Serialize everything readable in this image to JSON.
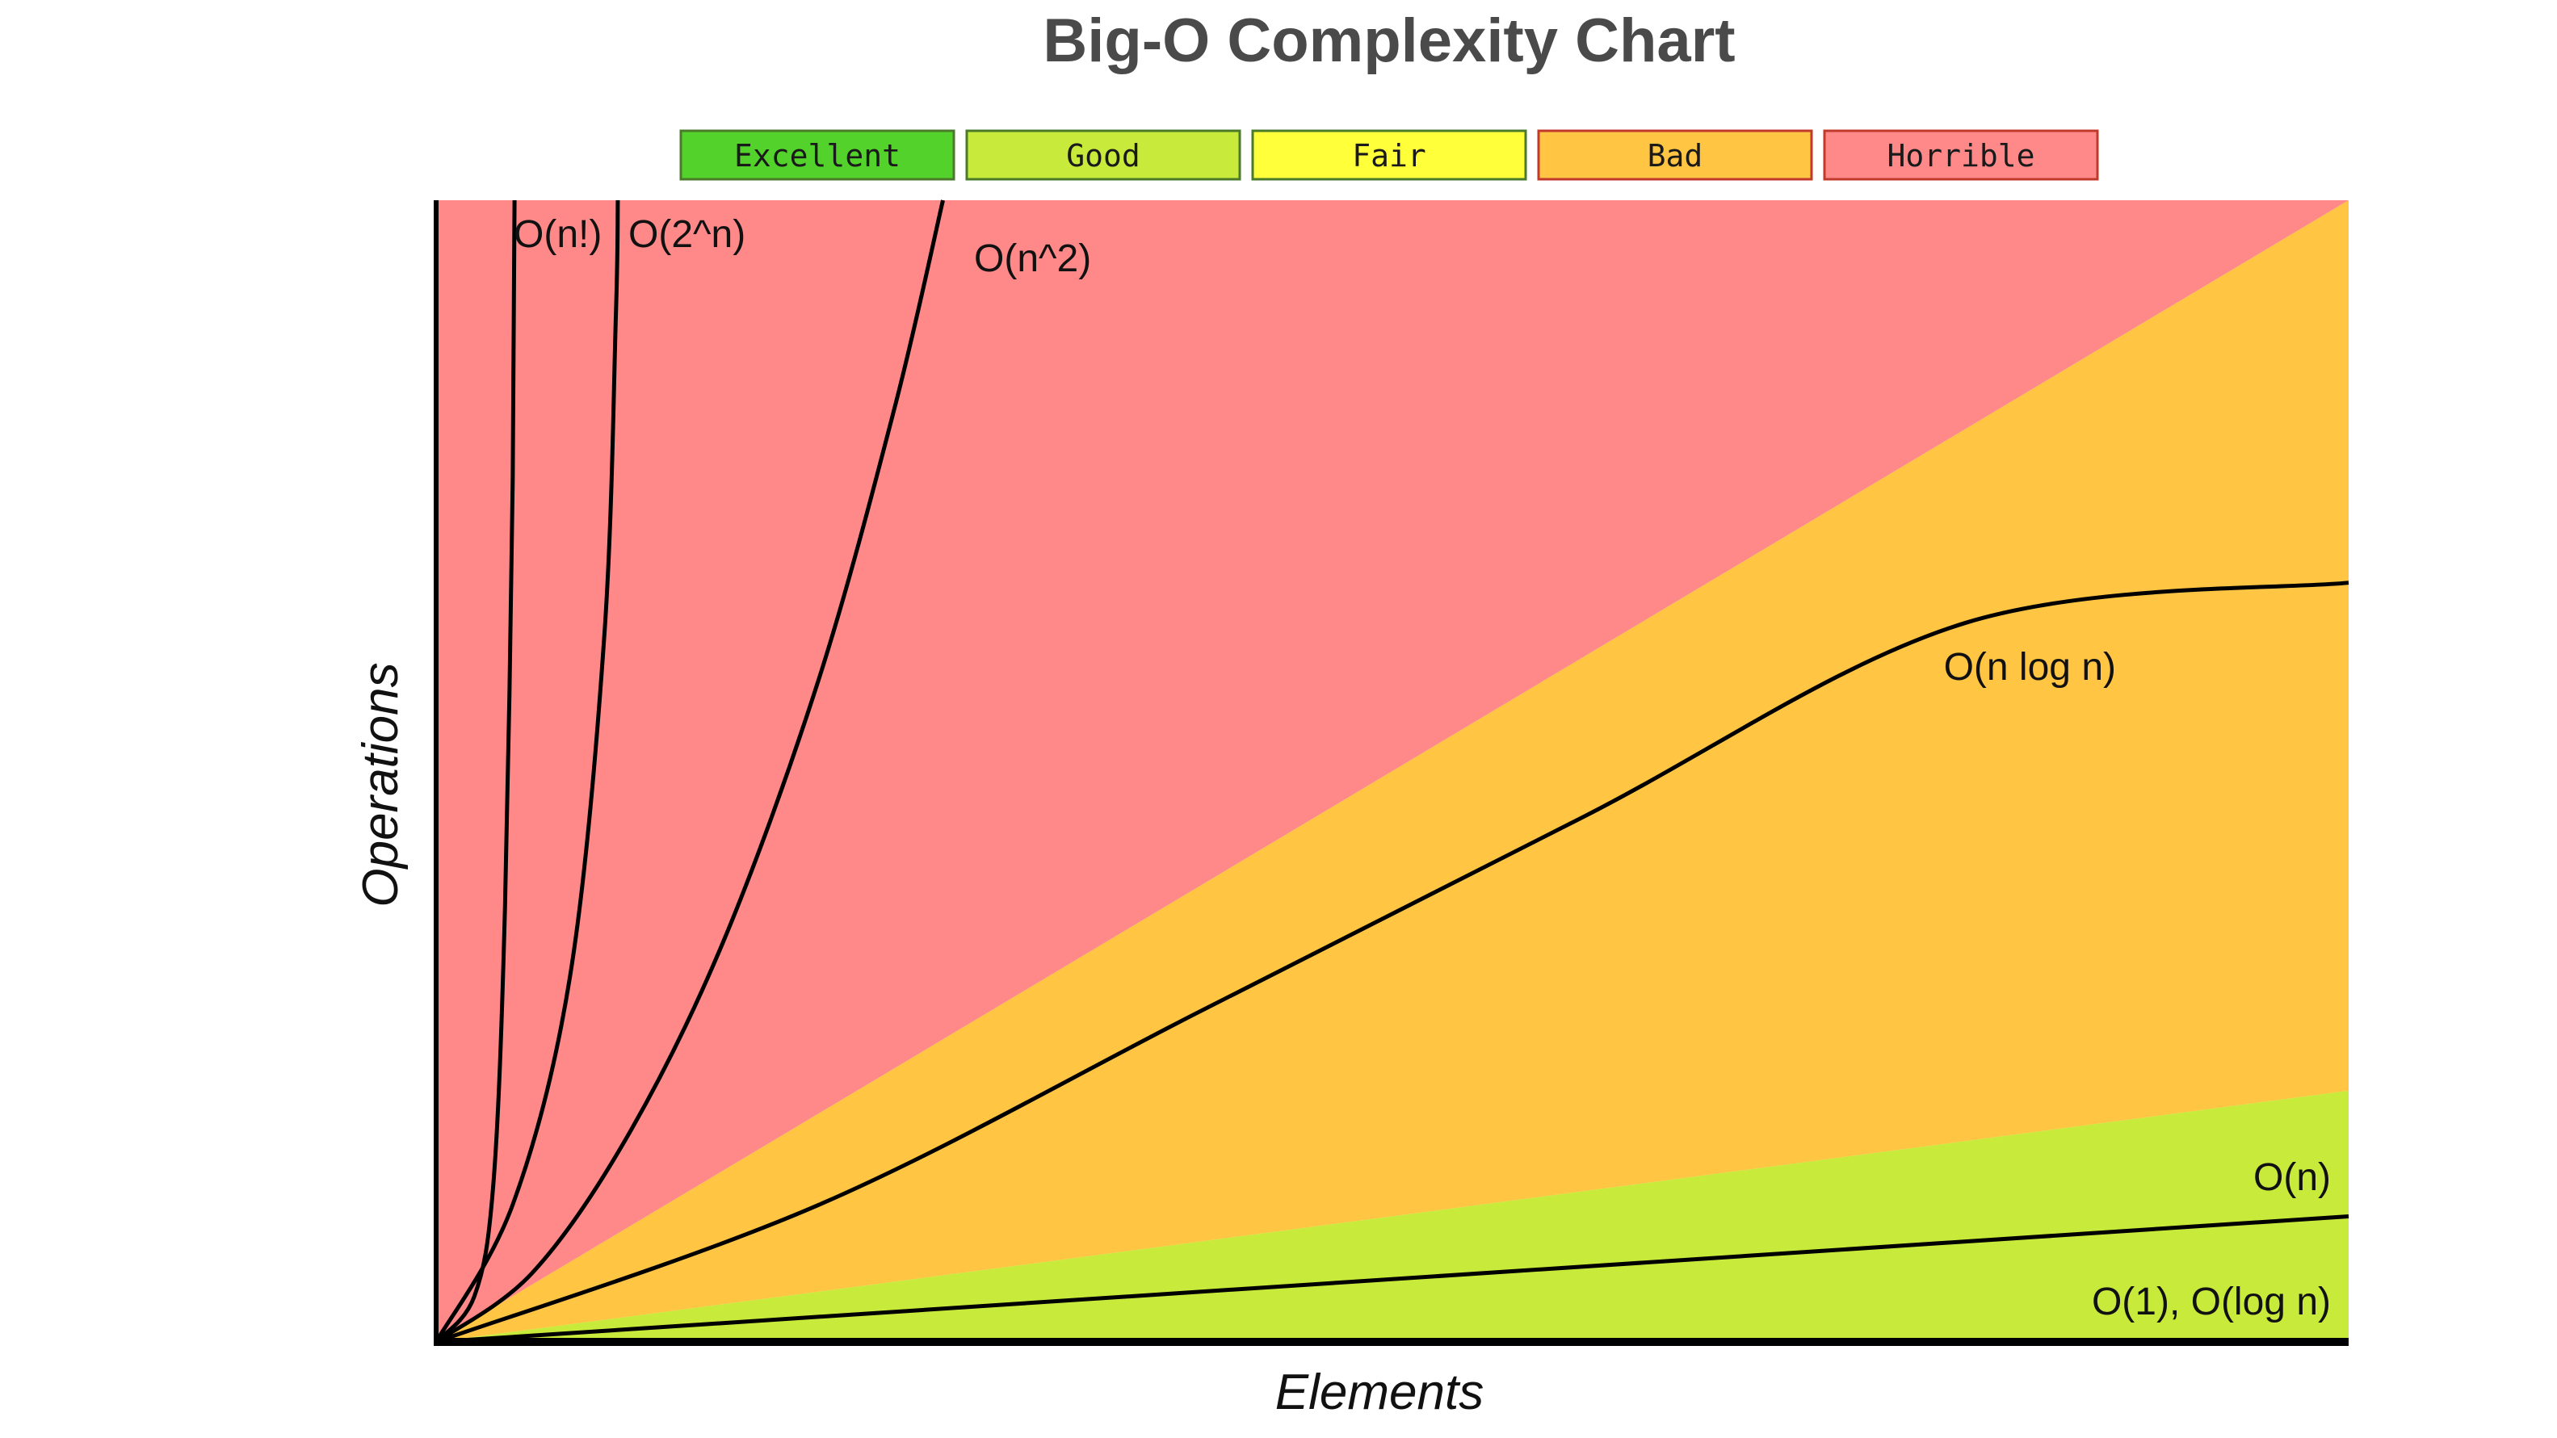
{
  "chart_data": {
    "type": "area",
    "title": "Big-O Complexity Chart",
    "xlabel": "Elements",
    "ylabel": "Operations",
    "xlim": [
      0,
      100
    ],
    "ylim": [
      0,
      100
    ],
    "legend": {
      "placement": "top",
      "items": [
        {
          "label": "Excellent",
          "color": "#53d22c"
        },
        {
          "label": "Good",
          "color": "#c8ea3a"
        },
        {
          "label": "Fair",
          "color": "#ffff3a"
        },
        {
          "label": "Bad",
          "color": "#ffc543"
        },
        {
          "label": "Horrible",
          "color": "#ff8989"
        }
      ]
    },
    "regions": [
      {
        "rating": "Horrible",
        "color": "#ff8989",
        "upper": [
          [
            0,
            0
          ],
          [
            0,
            100
          ],
          [
            100,
            100
          ]
        ],
        "lower": [
          [
            0,
            0
          ],
          [
            100,
            100
          ]
        ]
      },
      {
        "rating": "Bad",
        "color": "#ffc543",
        "upper": [
          [
            0,
            0
          ],
          [
            100,
            100
          ]
        ],
        "lower": [
          [
            0,
            0
          ],
          [
            100,
            22
          ]
        ]
      },
      {
        "rating": "Good",
        "color": "#c8ea3a",
        "upper": [
          [
            0,
            0
          ],
          [
            100,
            22
          ]
        ],
        "lower": [
          [
            0,
            0
          ],
          [
            100,
            0
          ]
        ]
      }
    ],
    "series": [
      {
        "name": "O(n!)",
        "x": [
          0,
          2,
          3,
          3.6,
          4,
          4.1
        ],
        "y": [
          0,
          4,
          14,
          38,
          75,
          100
        ]
      },
      {
        "name": "O(2^n)",
        "x": [
          0,
          4,
          7,
          8.8,
          9.4,
          9.5
        ],
        "y": [
          0,
          12,
          32,
          62,
          90,
          100
        ]
      },
      {
        "name": "O(n^2)",
        "x": [
          0,
          5,
          10,
          15,
          20,
          24,
          26.5
        ],
        "y": [
          0,
          6,
          18,
          35,
          58,
          82,
          100
        ]
      },
      {
        "name": "O(n log n)",
        "x": [
          0,
          20,
          40,
          60,
          80,
          100
        ],
        "y": [
          0,
          12,
          29,
          46,
          63,
          66.5
        ]
      },
      {
        "name": "O(n)",
        "x": [
          0,
          100
        ],
        "y": [
          0,
          11
        ]
      },
      {
        "name": "O(1), O(log n)",
        "x": [
          0,
          100
        ],
        "y": [
          0,
          0
        ]
      }
    ]
  }
}
